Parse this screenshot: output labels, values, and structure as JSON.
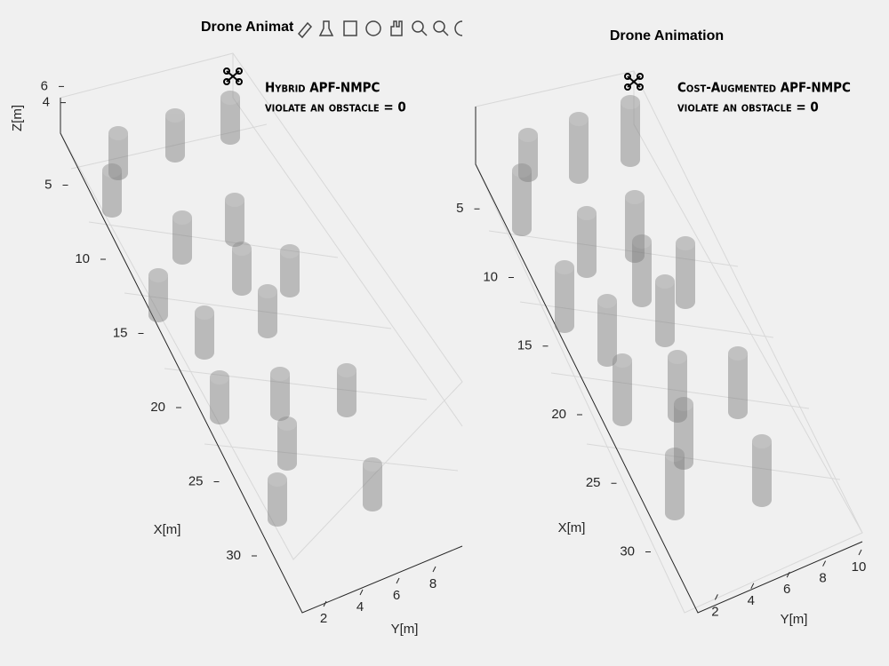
{
  "chart_data": [
    {
      "type": "3d",
      "title": "Drone Animation",
      "annotation": [
        "Hybrid APF-NMPC",
        "violate an obstacle = 0"
      ],
      "xlabel": "X[m]",
      "ylabel": "Y[m]",
      "zlabel": "Z[m]",
      "xticks": [
        5,
        10,
        15,
        20,
        25,
        30
      ],
      "yticks": [
        2,
        4,
        6,
        8
      ],
      "zticks": [
        4,
        6
      ]
    },
    {
      "type": "3d",
      "title": "Drone Animation",
      "annotation": [
        "Cost-Augmented APF-NMPC",
        "violate an obstacle = 0"
      ],
      "xlabel": "X[m]",
      "ylabel": "Y[m]",
      "xticks": [
        5,
        10,
        15,
        20,
        25,
        30
      ],
      "yticks": [
        2,
        4,
        6,
        8,
        10
      ]
    }
  ]
}
